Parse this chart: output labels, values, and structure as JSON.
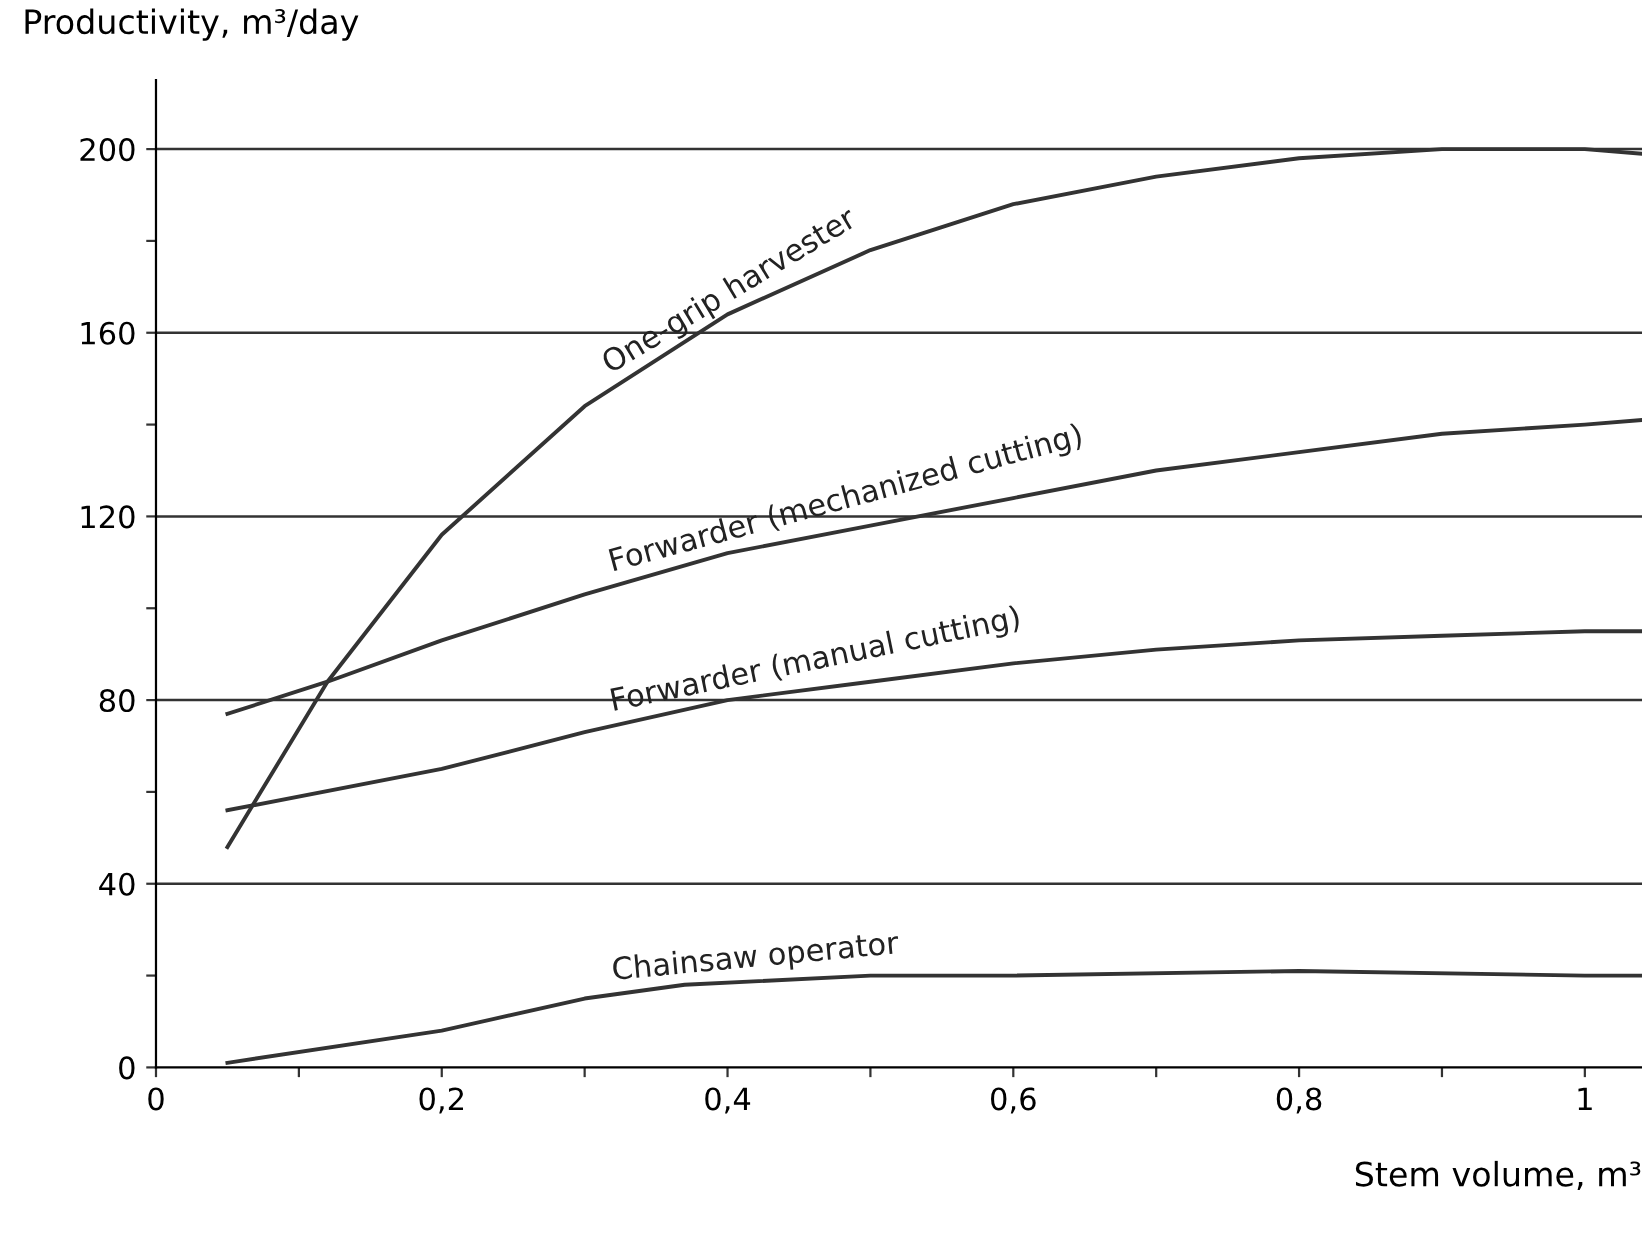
{
  "chart_data": {
    "type": "line",
    "xlabel": "Stem volume, m³",
    "ylabel": "Productivity, m³/day",
    "xlim": [
      0,
      1.04
    ],
    "ylim": [
      0,
      215
    ],
    "xticks": [
      0,
      {
        "value": 0.1,
        "label": null
      },
      {
        "value": 0.2,
        "label": "0,2"
      },
      {
        "value": 0.3,
        "label": null
      },
      {
        "value": 0.4,
        "label": "0,4"
      },
      {
        "value": 0.5,
        "label": null
      },
      {
        "value": 0.6,
        "label": "0,6"
      },
      {
        "value": 0.7,
        "label": null
      },
      {
        "value": 0.8,
        "label": "0,8"
      },
      {
        "value": 0.9,
        "label": null
      },
      1
    ],
    "yticks": [
      0,
      {
        "value": 20,
        "label": null
      },
      40,
      {
        "value": 60,
        "label": null
      },
      80,
      {
        "value": 100,
        "label": null
      },
      120,
      {
        "value": 140,
        "label": null
      },
      160,
      {
        "value": 180,
        "label": null
      },
      200
    ],
    "grid": "y",
    "legend": false,
    "marker": "none",
    "line_style": "solid",
    "series": [
      {
        "name": "One-grip harvester",
        "color": "#333333",
        "x": [
          0.05,
          0.12,
          0.2,
          0.3,
          0.4,
          0.5,
          0.6,
          0.7,
          0.8,
          0.9,
          1.0,
          1.04
        ],
        "values": [
          48,
          84,
          116,
          144,
          164,
          178,
          188,
          194,
          198,
          200,
          200,
          199
        ]
      },
      {
        "name": "Forwarder (mechanized cutting)",
        "color": "#333333",
        "x": [
          0.05,
          0.12,
          0.2,
          0.3,
          0.4,
          0.5,
          0.6,
          0.7,
          0.8,
          0.9,
          1.0,
          1.04
        ],
        "values": [
          77,
          84,
          93,
          103,
          112,
          118,
          124,
          130,
          134,
          138,
          140,
          141
        ]
      },
      {
        "name": "Forwarder (manual cutting)",
        "color": "#333333",
        "x": [
          0.05,
          0.2,
          0.3,
          0.4,
          0.5,
          0.6,
          0.7,
          0.8,
          0.9,
          1.0,
          1.04
        ],
        "values": [
          56,
          65,
          73,
          80,
          84,
          88,
          91,
          93,
          94,
          95,
          95
        ]
      },
      {
        "name": "Chainsaw operator",
        "color": "#333333",
        "x": [
          0.05,
          0.2,
          0.3,
          0.37,
          0.5,
          0.6,
          0.8,
          1.0,
          1.04
        ],
        "values": [
          1,
          8,
          15,
          18,
          20,
          20,
          21,
          20,
          20
        ]
      }
    ]
  }
}
